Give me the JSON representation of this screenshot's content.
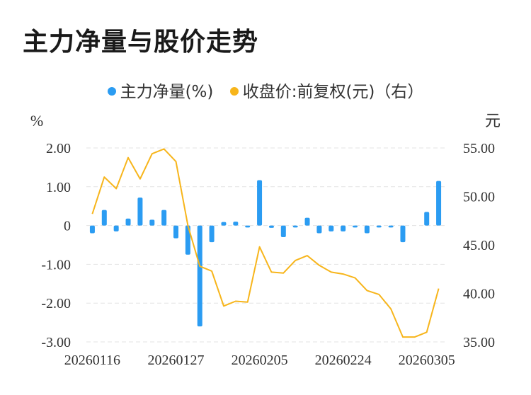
{
  "title": "主力净量与股价走势",
  "legend": {
    "bar_label": "主力净量(%)",
    "line_label": "收盘价:前复权(元)（右）"
  },
  "colors": {
    "bar": "#2b9cf2",
    "line": "#f7b51b",
    "grid": "#e3e3e3",
    "text": "#333333"
  },
  "chart_data": {
    "type": "bar+line",
    "title": "主力净量与股价走势",
    "left_axis": {
      "unit": "%",
      "range": [
        -3,
        2
      ],
      "ticks": [
        "2.00",
        "1.00",
        "0",
        "-1.00",
        "-2.00",
        "-3.00"
      ],
      "tick_values": [
        2,
        1,
        0,
        -1,
        -2,
        -3
      ]
    },
    "right_axis": {
      "unit": "元",
      "range": [
        35,
        55
      ],
      "ticks": [
        "55.00",
        "50.00",
        "45.00",
        "40.00",
        "35.00"
      ],
      "tick_values": [
        55,
        50,
        45,
        40,
        35
      ]
    },
    "x_tick_labels": [
      "20260116",
      "20260127",
      "20260205",
      "20260224",
      "20260305"
    ],
    "x_tick_indices": [
      0,
      7,
      14,
      21,
      28
    ],
    "count": 30,
    "series": [
      {
        "name": "主力净量(%)",
        "type": "bar",
        "axis": "left",
        "values": [
          -0.2,
          0.4,
          -0.15,
          0.18,
          0.72,
          0.15,
          0.4,
          -0.33,
          -0.75,
          -2.6,
          -0.43,
          0.09,
          0.1,
          -0.05,
          1.17,
          -0.06,
          -0.3,
          -0.05,
          0.2,
          -0.2,
          -0.15,
          -0.15,
          -0.05,
          -0.2,
          -0.05,
          -0.05,
          -0.43,
          0.0,
          0.35,
          1.15
        ]
      },
      {
        "name": "收盘价:前复权(元)（右）",
        "type": "line",
        "axis": "right",
        "values": [
          48.2,
          52.0,
          50.8,
          54.0,
          51.8,
          54.4,
          54.9,
          53.6,
          47.0,
          42.8,
          42.3,
          38.7,
          39.2,
          39.1,
          44.8,
          42.2,
          42.1,
          43.4,
          43.9,
          42.9,
          42.2,
          42.0,
          41.6,
          40.3,
          39.9,
          38.4,
          35.5,
          35.5,
          36.0,
          40.5
        ]
      }
    ],
    "grid": true
  }
}
